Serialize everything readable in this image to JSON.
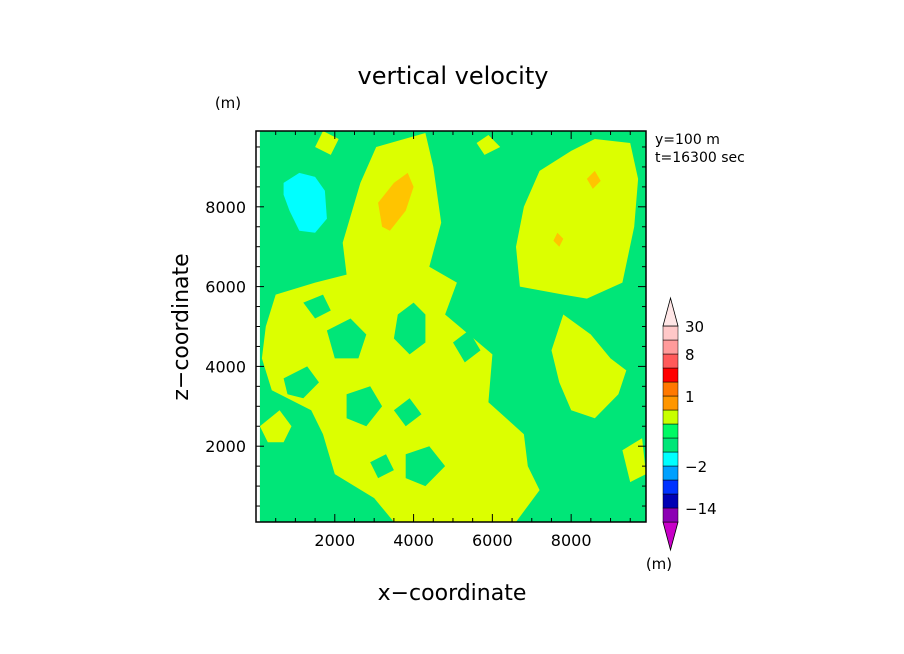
{
  "chart_data": {
    "type": "heatmap",
    "title": "vertical velocity",
    "xlabel": "x−coordinate",
    "ylabel": "z−coordinate",
    "y_unit": "(m)",
    "info_lines": [
      "y=100  m",
      "t=16300 sec"
    ],
    "xlim": [
      0,
      9900
    ],
    "ylim": [
      100,
      9900
    ],
    "x_ticks": [
      2000,
      4000,
      6000,
      8000
    ],
    "y_ticks": [
      2000,
      4000,
      6000,
      8000
    ],
    "x_tick_labels": [
      "2000",
      "4000",
      "6000",
      "8000"
    ],
    "y_tick_labels": [
      "2000",
      "4000",
      "6000",
      "8000"
    ],
    "colorbar": {
      "unit": "(m)",
      "labels": [
        {
          "text": "30",
          "at": 30
        },
        {
          "text": "8",
          "at": 8
        },
        {
          "text": "1",
          "at": 1
        },
        {
          "text": "−2",
          "at": -2
        },
        {
          "text": "−14",
          "at": -14
        }
      ],
      "levels": [
        -30,
        -14,
        -8,
        -4,
        -2,
        -1,
        -0.5,
        0,
        0.5,
        1,
        2,
        4,
        8,
        16,
        30
      ],
      "colors": [
        "#c800c8",
        "#8c00b4",
        "#0000b4",
        "#0032ff",
        "#00a0ff",
        "#00ffff",
        "#00e678",
        "#00fa64",
        "#c8ff00",
        "#ff9600",
        "#ff7800",
        "#ff0000",
        "#ff5a5a",
        "#ff9b9b",
        "#ffc8c8",
        "#ffe6e6"
      ]
    },
    "regions": [
      {
        "level": "-0.5 to 0",
        "color": "#00e678",
        "points": [
          [
            100,
            9900
          ],
          [
            9900,
            9900
          ],
          [
            9900,
            100
          ],
          [
            100,
            100
          ]
        ]
      },
      {
        "level": "0 to 0.5",
        "color": "#dcff00",
        "points": [
          [
            2650,
            8600
          ],
          [
            3050,
            9500
          ],
          [
            4300,
            9850
          ],
          [
            4500,
            9000
          ],
          [
            4700,
            7600
          ],
          [
            4400,
            6500
          ],
          [
            5100,
            6100
          ],
          [
            4800,
            5300
          ],
          [
            6000,
            4300
          ],
          [
            5900,
            3100
          ],
          [
            6800,
            2300
          ],
          [
            6900,
            1500
          ],
          [
            7200,
            900
          ],
          [
            6600,
            100
          ],
          [
            3500,
            100
          ],
          [
            3000,
            700
          ],
          [
            2000,
            1300
          ],
          [
            1700,
            2300
          ],
          [
            1400,
            2900
          ],
          [
            400,
            3400
          ],
          [
            150,
            4200
          ],
          [
            250,
            5000
          ],
          [
            500,
            5800
          ],
          [
            1500,
            6100
          ],
          [
            2300,
            6300
          ],
          [
            2200,
            7100
          ]
        ]
      },
      {
        "level": "0 to 0.5",
        "color": "#dcff00",
        "points": [
          [
            6700,
            6000
          ],
          [
            7800,
            5800
          ],
          [
            8400,
            5700
          ],
          [
            9300,
            6100
          ],
          [
            9600,
            7500
          ],
          [
            9700,
            8700
          ],
          [
            9500,
            9600
          ],
          [
            8600,
            9700
          ],
          [
            8000,
            9400
          ],
          [
            7200,
            8900
          ],
          [
            6800,
            8000
          ],
          [
            6600,
            7000
          ]
        ]
      },
      {
        "level": "0 to 0.5",
        "color": "#dcff00",
        "points": [
          [
            7800,
            5300
          ],
          [
            8500,
            4800
          ],
          [
            9000,
            4200
          ],
          [
            9400,
            3900
          ],
          [
            9200,
            3300
          ],
          [
            8600,
            2700
          ],
          [
            8000,
            2900
          ],
          [
            7700,
            3600
          ],
          [
            7500,
            4400
          ]
        ]
      },
      {
        "level": "0 to 0.5",
        "color": "#dcff00",
        "points": [
          [
            100,
            2500
          ],
          [
            600,
            2900
          ],
          [
            900,
            2500
          ],
          [
            700,
            2100
          ],
          [
            300,
            2100
          ]
        ]
      },
      {
        "level": "0 to 0.5",
        "color": "#dcff00",
        "points": [
          [
            1700,
            9900
          ],
          [
            2100,
            9700
          ],
          [
            1900,
            9300
          ],
          [
            1500,
            9500
          ]
        ]
      },
      {
        "level": "0 to 0.5",
        "color": "#dcff00",
        "points": [
          [
            5600,
            9600
          ],
          [
            5900,
            9800
          ],
          [
            6200,
            9500
          ],
          [
            5800,
            9300
          ]
        ]
      },
      {
        "level": "0 to 0.5",
        "color": "#dcff00",
        "points": [
          [
            9300,
            1900
          ],
          [
            9800,
            2200
          ],
          [
            9900,
            1300
          ],
          [
            9500,
            1100
          ]
        ]
      },
      {
        "level": "-0.5 to 0",
        "color": "#00e678",
        "points": [
          [
            3600,
            5300
          ],
          [
            4000,
            5600
          ],
          [
            4300,
            5300
          ],
          [
            4300,
            4600
          ],
          [
            3900,
            4300
          ],
          [
            3500,
            4700
          ]
        ]
      },
      {
        "level": "-0.5 to 0",
        "color": "#00e678",
        "points": [
          [
            1800,
            4900
          ],
          [
            2400,
            5200
          ],
          [
            2800,
            4800
          ],
          [
            2600,
            4200
          ],
          [
            2000,
            4200
          ]
        ]
      },
      {
        "level": "-0.5 to 0",
        "color": "#00e678",
        "points": [
          [
            700,
            3700
          ],
          [
            1300,
            4000
          ],
          [
            1600,
            3600
          ],
          [
            1200,
            3200
          ],
          [
            800,
            3300
          ]
        ]
      },
      {
        "level": "-0.5 to 0",
        "color": "#00e678",
        "points": [
          [
            2300,
            3300
          ],
          [
            2900,
            3500
          ],
          [
            3200,
            3000
          ],
          [
            2800,
            2500
          ],
          [
            2300,
            2700
          ]
        ]
      },
      {
        "level": "-0.5 to 0",
        "color": "#00e678",
        "points": [
          [
            3800,
            1800
          ],
          [
            4400,
            2000
          ],
          [
            4800,
            1500
          ],
          [
            4300,
            1000
          ],
          [
            3800,
            1200
          ]
        ]
      },
      {
        "level": "-0.5 to 0",
        "color": "#00e678",
        "points": [
          [
            1200,
            5600
          ],
          [
            1700,
            5800
          ],
          [
            1900,
            5400
          ],
          [
            1500,
            5200
          ]
        ]
      },
      {
        "level": "-0.5 to 0",
        "color": "#00e678",
        "points": [
          [
            3500,
            2900
          ],
          [
            3900,
            3200
          ],
          [
            4200,
            2800
          ],
          [
            3800,
            2500
          ]
        ]
      },
      {
        "level": "-0.5 to 0",
        "color": "#00e678",
        "points": [
          [
            5000,
            4600
          ],
          [
            5400,
            4900
          ],
          [
            5700,
            4400
          ],
          [
            5300,
            4100
          ]
        ]
      },
      {
        "level": "-0.5 to 0",
        "color": "#00e678",
        "points": [
          [
            2900,
            1600
          ],
          [
            3300,
            1800
          ],
          [
            3500,
            1400
          ],
          [
            3100,
            1200
          ]
        ]
      },
      {
        "level": "-1 to -0.5",
        "color": "#00ffff",
        "points": [
          [
            700,
            8600
          ],
          [
            1100,
            8850
          ],
          [
            1500,
            8750
          ],
          [
            1750,
            8400
          ],
          [
            1800,
            7700
          ],
          [
            1500,
            7350
          ],
          [
            1100,
            7400
          ],
          [
            850,
            7900
          ],
          [
            700,
            8300
          ]
        ]
      },
      {
        "level": "0.5 to 1",
        "color": "#ffc400",
        "points": [
          [
            3100,
            8100
          ],
          [
            3500,
            8600
          ],
          [
            3850,
            8850
          ],
          [
            4000,
            8500
          ],
          [
            3800,
            7900
          ],
          [
            3400,
            7400
          ],
          [
            3200,
            7500
          ]
        ]
      },
      {
        "level": "0.5 to 1",
        "color": "#ffc400",
        "points": [
          [
            8400,
            8700
          ],
          [
            8600,
            8900
          ],
          [
            8750,
            8650
          ],
          [
            8550,
            8450
          ]
        ]
      },
      {
        "level": "0.5 to 1",
        "color": "#ffc400",
        "points": [
          [
            7550,
            7150
          ],
          [
            7650,
            7350
          ],
          [
            7800,
            7200
          ],
          [
            7700,
            7000
          ]
        ]
      }
    ]
  }
}
